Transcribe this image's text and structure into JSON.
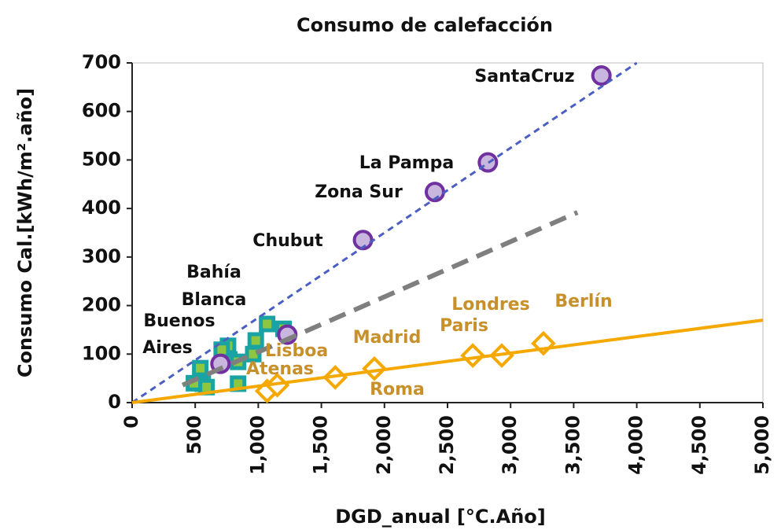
{
  "chart_data": {
    "type": "scatter",
    "title": "Consumo de calefacción",
    "x_label": "DGD_anual [°C.Año]",
    "y_label": "Consumo Cal.[kWh/m².año]",
    "xlim": [
      0,
      5000
    ],
    "xticks": [
      0,
      500,
      {
        "value": 1000,
        "label": "1,000"
      },
      {
        "value": 1500,
        "label": "1,500"
      },
      {
        "value": 2000,
        "label": "2,000"
      },
      {
        "value": 2500,
        "label": "2,500"
      },
      {
        "value": 3000,
        "label": "3,000"
      },
      {
        "value": 3500,
        "label": "3,500"
      },
      {
        "value": 4000,
        "label": "4,000"
      },
      {
        "value": 4500,
        "label": "4,500"
      },
      {
        "value": 5000,
        "label": "5,000"
      }
    ],
    "ylim": [
      0,
      700
    ],
    "yticks": [
      0,
      100,
      200,
      300,
      400,
      500,
      600,
      700
    ],
    "series": [
      {
        "marker": "square",
        "color": "#1aa3a3",
        "x": [
          540,
          560,
          490,
          590,
          760,
          770,
          840,
          840,
          960,
          980,
          1070,
          1200,
          710
        ],
        "values": [
          71,
          39,
          40,
          32,
          117,
          89,
          84,
          39,
          100,
          128,
          162,
          152,
          109
        ]
      },
      {
        "marker": "circle",
        "color": "#7030a0",
        "x": [
          700,
          1230,
          1830,
          2400,
          2820,
          3720
        ],
        "values": [
          80,
          140,
          335,
          434,
          495,
          674
        ]
      },
      {
        "marker": "diamond",
        "color": "#f5a800",
        "x": [
          1070,
          1150,
          1610,
          1920,
          2700,
          2930,
          3260
        ],
        "values": [
          24,
          36,
          52,
          70,
          97,
          97,
          122
        ]
      },
      {
        "marker": "line",
        "style": "dotted",
        "color": "#4a5fc1",
        "x": [
          0,
          4000
        ],
        "values": [
          0,
          700
        ]
      },
      {
        "marker": "line",
        "style": "dashed",
        "color": "#7f7f7f",
        "x": [
          400,
          3530
        ],
        "values": [
          36,
          392
        ]
      },
      {
        "marker": "line",
        "style": "solid",
        "color": "#f5a800",
        "x": [
          0,
          5000
        ],
        "values": [
          0,
          170
        ]
      }
    ],
    "annotations": [
      {
        "text": "SantaCruz",
        "color": "#111111"
      },
      {
        "text": "La Pampa",
        "color": "#111111"
      },
      {
        "text": "Zona Sur",
        "color": "#111111"
      },
      {
        "text": "Chubut",
        "color": "#111111"
      },
      {
        "text": "Bahía",
        "color": "#111111"
      },
      {
        "text": "Blanca",
        "color": "#111111"
      },
      {
        "text": "Buenos",
        "color": "#111111"
      },
      {
        "text": "Aires",
        "color": "#111111"
      },
      {
        "text": "Lisboa",
        "color": "#c8902a"
      },
      {
        "text": "Atenas",
        "color": "#c8902a"
      },
      {
        "text": "Madrid",
        "color": "#c8902a"
      },
      {
        "text": "Roma",
        "color": "#c8902a"
      },
      {
        "text": "Londres",
        "color": "#c8902a"
      },
      {
        "text": "Paris",
        "color": "#c8902a"
      },
      {
        "text": "Berlín",
        "color": "#c8902a"
      }
    ]
  }
}
